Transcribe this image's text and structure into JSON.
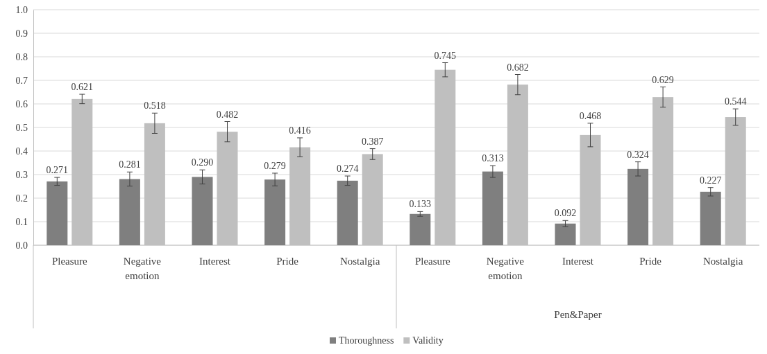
{
  "chart_data": {
    "type": "bar",
    "categories": [
      "Pleasure",
      "Negative emotion",
      "Interest",
      "Pride",
      "Nostalgia",
      "Pleasure",
      "Negative emotion",
      "Interest",
      "Pride",
      "Nostalgia"
    ],
    "series": [
      {
        "name": "Thoroughness",
        "color": "#7f7f7f",
        "values": [
          0.271,
          0.281,
          0.29,
          0.279,
          0.274,
          0.133,
          0.313,
          0.092,
          0.324,
          0.227
        ],
        "errors": [
          0.017,
          0.03,
          0.03,
          0.027,
          0.02,
          0.01,
          0.025,
          0.013,
          0.03,
          0.018
        ],
        "value_labels": [
          "0.271",
          "0.281",
          "0.290",
          "0.279",
          "0.274",
          "0.133",
          "0.313",
          "0.092",
          "0.324",
          "0.227"
        ]
      },
      {
        "name": "Validity",
        "color": "#bfbfbf",
        "values": [
          0.621,
          0.518,
          0.482,
          0.416,
          0.387,
          0.745,
          0.682,
          0.468,
          0.629,
          0.544
        ],
        "errors": [
          0.02,
          0.043,
          0.043,
          0.04,
          0.023,
          0.03,
          0.043,
          0.05,
          0.043,
          0.035
        ],
        "value_labels": [
          "0.621",
          "0.518",
          "0.482",
          "0.416",
          "0.387",
          "0.745",
          "0.682",
          "0.468",
          "0.629",
          "0.544"
        ]
      }
    ],
    "annotations": [
      "Pen&Paper"
    ],
    "ylim": [
      0,
      1
    ],
    "yticks": [
      {
        "value": 0,
        "label": "0.0"
      },
      {
        "value": 0.1,
        "label": "0.1"
      },
      {
        "value": 0.2,
        "label": "0.2"
      },
      {
        "value": 0.3,
        "label": "0.3"
      },
      {
        "value": 0.4,
        "label": "0.4"
      },
      {
        "value": 0.5,
        "label": "0.5"
      },
      {
        "value": 0.6,
        "label": "0.6"
      },
      {
        "value": 0.7,
        "label": "0.7"
      },
      {
        "value": 0.8,
        "label": "0.8"
      },
      {
        "value": 0.9,
        "label": "0.9"
      },
      {
        "value": 1,
        "label": "1.0"
      }
    ],
    "grid": "y",
    "legend": "bottom"
  }
}
